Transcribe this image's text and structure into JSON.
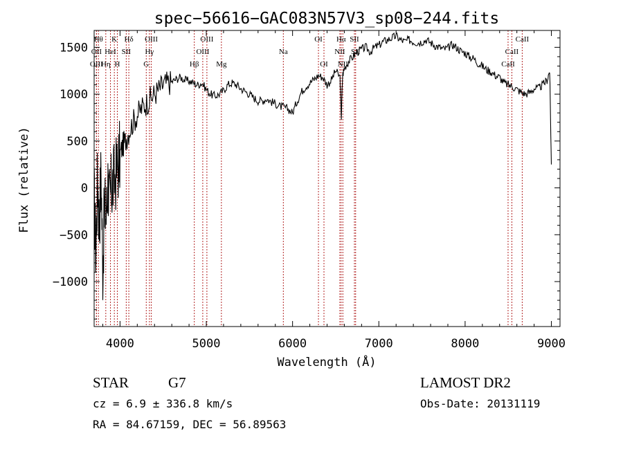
{
  "chart_data": {
    "type": "line",
    "title": "spec−56616−GAC083N57V3_sp08−244.fits",
    "xlabel": "Wavelength (Å)",
    "ylabel": "Flux (relative)",
    "xlim": [
      3700,
      9100
    ],
    "ylim": [
      -1480,
      1680
    ],
    "x_ticks": [
      4000,
      5000,
      6000,
      7000,
      8000,
      9000
    ],
    "x_tick_labels": [
      "4000",
      "5000",
      "6000",
      "7000",
      "8000",
      "9000"
    ],
    "y_ticks": [
      -1000,
      -500,
      0,
      500,
      1000,
      1500
    ],
    "y_tick_labels": [
      "−1000",
      "−500",
      "0",
      "500",
      "1000",
      "1500"
    ],
    "line_color": "#000000",
    "marker_color": "#b22222",
    "series": [
      {
        "x": [
          3700,
          3720,
          3740,
          3760,
          3780,
          3800,
          3820,
          3840,
          3860,
          3880,
          3900,
          3920,
          3950,
          3980,
          4000,
          4030,
          4060,
          4100,
          4150,
          4200,
          4250,
          4300,
          4350,
          4400,
          4450,
          4500,
          4550,
          4600,
          4650,
          4700,
          4750,
          4800,
          4850,
          4900,
          4950,
          5000,
          5050,
          5100,
          5150,
          5200,
          5250,
          5300,
          5350,
          5400,
          5450,
          5500,
          5550,
          5600,
          5650,
          5700,
          5750,
          5800,
          5850,
          5900,
          5950,
          6000,
          6050,
          6100,
          6150,
          6200,
          6250,
          6300,
          6350,
          6400,
          6450,
          6500,
          6550,
          6565,
          6580,
          6600,
          6650,
          6700,
          6750,
          6800,
          6850,
          6900,
          6950,
          7000,
          7050,
          7100,
          7150,
          7200,
          7250,
          7300,
          7350,
          7400,
          7450,
          7500,
          7550,
          7600,
          7650,
          7700,
          7750,
          7800,
          7850,
          7900,
          7950,
          8000,
          8050,
          8100,
          8150,
          8200,
          8250,
          8300,
          8350,
          8400,
          8450,
          8500,
          8550,
          8600,
          8650,
          8700,
          8750,
          8800,
          8850,
          8900,
          8950,
          8980,
          9000
        ],
        "y": [
          -100,
          -700,
          150,
          -400,
          200,
          -850,
          -200,
          -300,
          100,
          -200,
          0,
          50,
          150,
          250,
          350,
          450,
          500,
          600,
          700,
          780,
          850,
          900,
          950,
          1000,
          1050,
          1100,
          1120,
          1130,
          1160,
          1180,
          1150,
          1140,
          1120,
          1100,
          1120,
          1050,
          1000,
          980,
          1000,
          1040,
          1100,
          1120,
          1100,
          1060,
          1030,
          1000,
          960,
          930,
          930,
          950,
          920,
          900,
          870,
          860,
          840,
          800,
          920,
          1020,
          1080,
          1120,
          1160,
          1200,
          1180,
          1100,
          1150,
          1250,
          1180,
          750,
          1200,
          1280,
          1350,
          1400,
          1450,
          1480,
          1500,
          1450,
          1500,
          1520,
          1560,
          1580,
          1600,
          1620,
          1580,
          1560,
          1580,
          1560,
          1550,
          1560,
          1580,
          1550,
          1520,
          1500,
          1480,
          1490,
          1530,
          1500,
          1460,
          1440,
          1400,
          1380,
          1330,
          1300,
          1260,
          1240,
          1200,
          1180,
          1120,
          1100,
          1080,
          1050,
          1020,
          1000,
          1020,
          1060,
          1060,
          1100,
          1150,
          1250,
          250
        ]
      }
    ],
    "line_markers": [
      {
        "x": 3750,
        "label": "Hθ",
        "row": 0
      },
      {
        "x": 3727,
        "label": "OII",
        "row": 1
      },
      {
        "x": 3727,
        "label": "OIII",
        "row": 2
      },
      {
        "x": 3835,
        "label": "Hη",
        "row": 2
      },
      {
        "x": 3889,
        "label": "HeI",
        "row": 1
      },
      {
        "x": 3934,
        "label": "K",
        "row": 0
      },
      {
        "x": 3969,
        "label": "H",
        "row": 2
      },
      {
        "x": 4072,
        "label": "SII",
        "row": 1
      },
      {
        "x": 4102,
        "label": "Hδ",
        "row": 0
      },
      {
        "x": 4304,
        "label": "G",
        "row": 2
      },
      {
        "x": 4341,
        "label": "Hγ",
        "row": 1
      },
      {
        "x": 4363,
        "label": "OIII",
        "row": 0
      },
      {
        "x": 4861,
        "label": "Hβ",
        "row": 2
      },
      {
        "x": 4959,
        "label": "OIII",
        "row": 1
      },
      {
        "x": 5007,
        "label": "OIII",
        "row": 0
      },
      {
        "x": 5175,
        "label": "Mg",
        "row": 2
      },
      {
        "x": 5893,
        "label": "Na",
        "row": 1
      },
      {
        "x": 6300,
        "label": "OI",
        "row": 0
      },
      {
        "x": 6364,
        "label": "OI",
        "row": 2
      },
      {
        "x": 6548,
        "label": "NII",
        "row": 1
      },
      {
        "x": 6563,
        "label": "Hα",
        "row": 0
      },
      {
        "x": 6583,
        "label": "NII",
        "row": 2
      },
      {
        "x": 6717,
        "label": "SII",
        "row": 0
      },
      {
        "x": 6731,
        "label": "SII",
        "row": 1
      },
      {
        "x": 8498,
        "label": "CaII",
        "row": 2
      },
      {
        "x": 8542,
        "label": "CaII",
        "row": 1
      },
      {
        "x": 8662,
        "label": "CaII",
        "row": 0
      }
    ]
  },
  "info": {
    "class_label": "STAR",
    "subclass": "G7",
    "survey": "LAMOST DR2",
    "cz": "cz = 6.9 ± 336.8 km/s",
    "obs_date": "Obs-Date: 20131119",
    "coords": "RA =  84.67159, DEC =  56.89563"
  }
}
